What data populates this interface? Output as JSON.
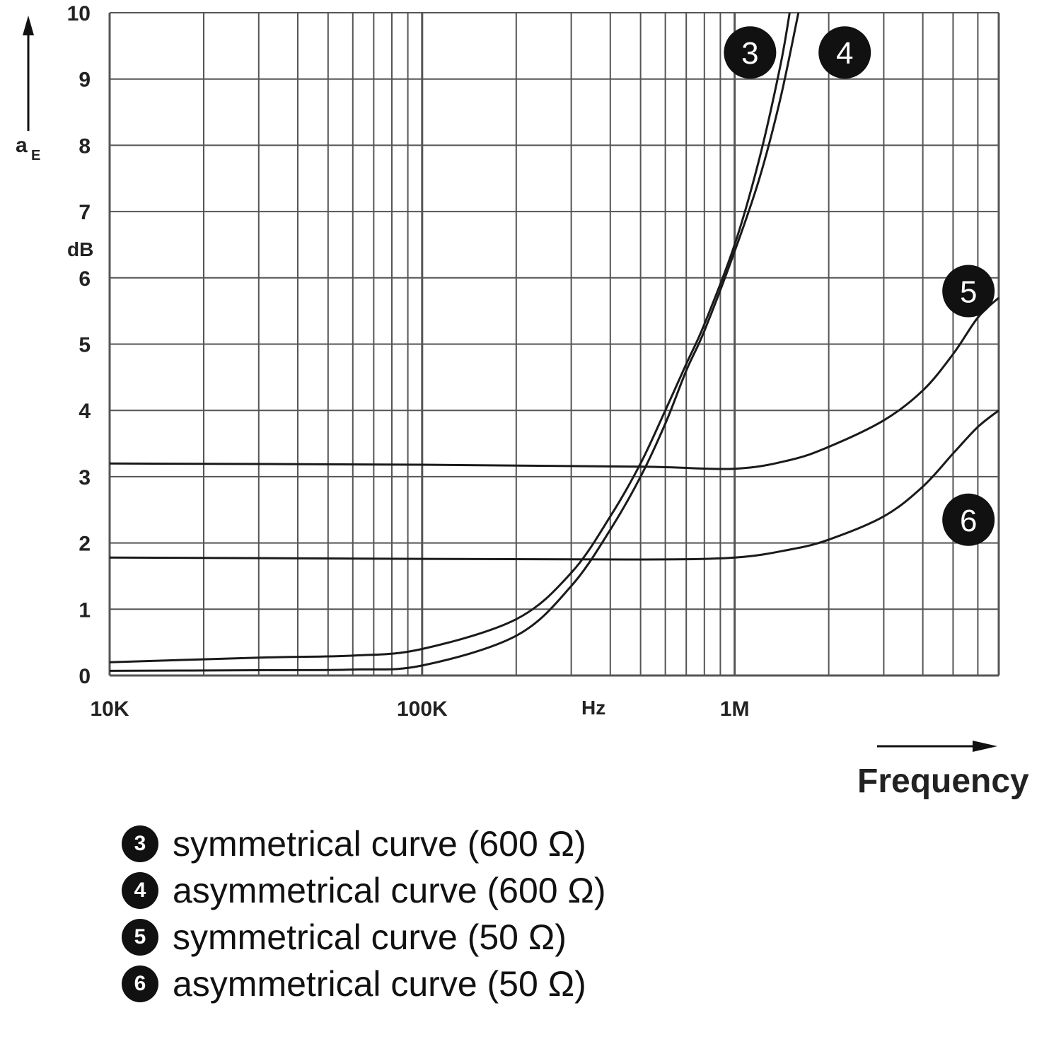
{
  "chart_data": {
    "type": "line",
    "ylabel": "a",
    "ylabel_sub": "E",
    "yunit": "dB",
    "xlabel": "Frequency",
    "xunit": "Hz",
    "x_scale": "log",
    "xlim": [
      10000,
      7000000
    ],
    "ylim": [
      0,
      10
    ],
    "x_ticks": [
      {
        "value": 10000,
        "label": "10K"
      },
      {
        "value": 100000,
        "label": "100K"
      },
      {
        "value": 1000000,
        "label": "1M"
      }
    ],
    "y_ticks": [
      0,
      1,
      2,
      3,
      4,
      5,
      6,
      7,
      8,
      9,
      10
    ],
    "grid": true,
    "series": [
      {
        "id": "3",
        "x": [
          10000,
          30000,
          60000,
          100000,
          200000,
          300000,
          400000,
          500000,
          600000,
          700000,
          800000,
          1000000,
          1200000,
          1400000,
          1500000
        ],
        "values": [
          0.2,
          0.27,
          0.3,
          0.4,
          0.85,
          1.55,
          2.4,
          3.2,
          4.0,
          4.7,
          5.3,
          6.5,
          7.8,
          9.2,
          10.0
        ]
      },
      {
        "id": "4",
        "x": [
          10000,
          30000,
          60000,
          100000,
          200000,
          300000,
          400000,
          500000,
          600000,
          700000,
          800000,
          1000000,
          1200000,
          1400000,
          1600000
        ],
        "values": [
          0.07,
          0.08,
          0.09,
          0.15,
          0.6,
          1.35,
          2.2,
          3.0,
          3.8,
          4.6,
          5.2,
          6.4,
          7.5,
          8.7,
          10.0
        ]
      },
      {
        "id": "5",
        "x": [
          10000,
          100000,
          500000,
          1000000,
          1500000,
          2000000,
          3000000,
          4000000,
          5000000,
          6000000,
          7000000
        ],
        "values": [
          3.2,
          3.18,
          3.15,
          3.12,
          3.25,
          3.45,
          3.85,
          4.3,
          4.85,
          5.4,
          5.7
        ]
      },
      {
        "id": "6",
        "x": [
          10000,
          100000,
          500000,
          1000000,
          1500000,
          2000000,
          3000000,
          4000000,
          5000000,
          6000000,
          7000000
        ],
        "values": [
          1.78,
          1.76,
          1.75,
          1.78,
          1.9,
          2.05,
          2.4,
          2.85,
          3.35,
          3.75,
          4.0
        ]
      }
    ],
    "curve_labels": [
      {
        "id": "3",
        "text": "3",
        "x": 1120000,
        "y": 9.4
      },
      {
        "id": "4",
        "text": "4",
        "x": 2250000,
        "y": 9.4
      },
      {
        "id": "5",
        "text": "5",
        "x": 5600000,
        "y": 5.8
      },
      {
        "id": "6",
        "text": "6",
        "x": 5600000,
        "y": 2.35
      }
    ]
  },
  "legend": [
    {
      "badge": "3",
      "text": "symmetrical curve (600 Ω)"
    },
    {
      "badge": "4",
      "text": "asymmetrical curve (600 Ω)"
    },
    {
      "badge": "5",
      "text": "symmetrical curve (50 Ω)"
    },
    {
      "badge": "6",
      "text": "asymmetrical curve (50 Ω)"
    }
  ],
  "colors": {
    "line": "#1a1a1a",
    "grid": "#555555",
    "badge": "#111111"
  }
}
